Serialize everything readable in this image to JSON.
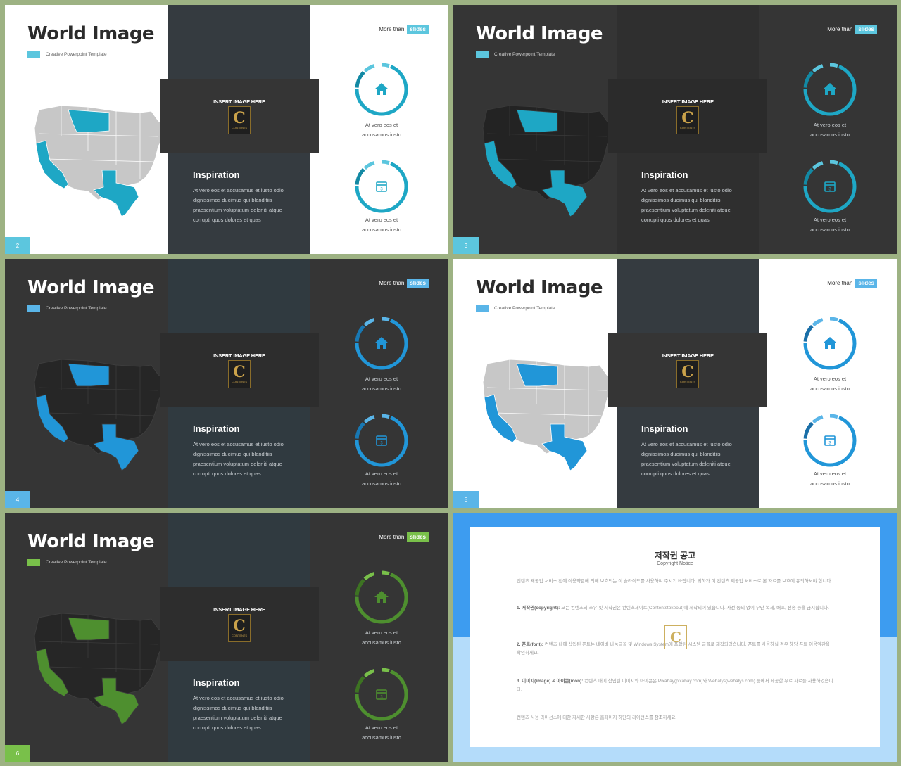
{
  "colors": {
    "frame": "#9db283",
    "teal": "#1ea7c5",
    "blue": "#3aa5dc",
    "green": "#6cb33e",
    "dark": "#353535",
    "dark_panel": "#303a40"
  },
  "slides": [
    {
      "title": "World Image",
      "subtitle": "Creative Powerpoint Template",
      "more_than": "More than",
      "badge": "slides",
      "insert_image": "INSERT IMAGE HERE",
      "inspiration_heading": "Inspiration",
      "inspiration_body": "At vero eos et accusamus  et iusto odio dignissimos ducimus qui blanditiis praesentium voluptatum deleniti atque corrupti quos dolores et quas",
      "ring1_caption_line1": "At vero eos et",
      "ring1_caption_line2": "accusamus  iusto",
      "ring2_caption_line1": "At vero eos et",
      "ring2_caption_line2": "accusamus  iusto",
      "ring1_icon": "home-icon",
      "ring2_icon": "calendar-icon",
      "page_number": "2"
    },
    {
      "title": "World Image",
      "subtitle": "Creative Powerpoint Template",
      "more_than": "More than",
      "badge": "slides",
      "insert_image": "INSERT IMAGE HERE",
      "inspiration_heading": "Inspiration",
      "inspiration_body": "At vero eos et accusamus  et iusto odio dignissimos ducimus qui blanditiis praesentium voluptatum deleniti atque corrupti quos dolores et quas",
      "ring1_caption_line1": "At vero eos et",
      "ring1_caption_line2": "accusamus  iusto",
      "ring2_caption_line1": "At vero eos et",
      "ring2_caption_line2": "accusamus  iusto",
      "ring1_icon": "home-icon",
      "ring2_icon": "calendar-icon",
      "page_number": "3"
    },
    {
      "title": "World Image",
      "subtitle": "Creative Powerpoint Template",
      "more_than": "More than",
      "badge": "slides",
      "insert_image": "INSERT IMAGE HERE",
      "inspiration_heading": "Inspiration",
      "inspiration_body": "At vero eos et accusamus  et iusto odio dignissimos ducimus qui blanditiis praesentium voluptatum deleniti atque corrupti quos dolores et quas",
      "ring1_caption_line1": "At vero eos et",
      "ring1_caption_line2": "accusamus  iusto",
      "ring2_caption_line1": "At vero eos et",
      "ring2_caption_line2": "accusamus  iusto",
      "ring1_icon": "home-icon",
      "ring2_icon": "calendar-icon",
      "page_number": "4"
    },
    {
      "title": "World Image",
      "subtitle": "Creative Powerpoint Template",
      "more_than": "More than",
      "badge": "slides",
      "insert_image": "INSERT IMAGE HERE",
      "inspiration_heading": "Inspiration",
      "inspiration_body": "At vero eos et accusamus  et iusto odio dignissimos ducimus qui blanditiis praesentium voluptatum deleniti atque corrupti quos dolores et quas",
      "ring1_caption_line1": "At vero eos et",
      "ring1_caption_line2": "accusamus  iusto",
      "ring2_caption_line1": "At vero eos et",
      "ring2_caption_line2": "accusamus  iusto",
      "ring1_icon": "home-icon",
      "ring2_icon": "calendar-icon",
      "page_number": "5"
    },
    {
      "title": "World Image",
      "subtitle": "Creative Powerpoint Template",
      "more_than": "More than",
      "badge": "slides",
      "insert_image": "INSERT IMAGE HERE",
      "inspiration_heading": "Inspiration",
      "inspiration_body": "At vero eos et accusamus  et iusto odio dignissimos ducimus qui blanditiis praesentium voluptatum deleniti atque corrupti quos dolores et quas",
      "ring1_caption_line1": "At vero eos et",
      "ring1_caption_line2": "accusamus  iusto",
      "ring2_caption_line1": "At vero eos et",
      "ring2_caption_line2": "accusamus  iusto",
      "ring1_icon": "home-icon",
      "ring2_icon": "calendar-icon",
      "page_number": "6"
    }
  ],
  "logo": {
    "letter": "C",
    "text": "CONTENTS"
  },
  "copyright": {
    "title": "저작권 공고",
    "subtitle": "Copyright Notice",
    "p1": "컨텐츠 제공업 서비스 전에 이용약관에 의해 보호되는 이 슬라이드를 사용하여 주시기 바랍니다. 귀하가 이 컨텐츠 제공업 서비스로 본 자료를 보호에 유의하셔야 합니다.",
    "p2_label": "1. 저작권(copyright):",
    "p2": " 모든 컨텐츠의 소유 및 저작권은 컨텐츠제이트(Contentstokeout)에 제작되어 있습니다. 사전 동의 없이 무단 복제, 배포, 전송 등을 금지합니다.",
    "p3_label": "2. 폰트(font):",
    "p3": " 컨텐츠 내에 삽입된 폰트는 네이버 나눔글꼴 및 Windows System에 포함된 시스템 글꼴로 제작되었습니다. 폰트를 사용하실 경우 해당 폰트 이용약관을 확인하세요.",
    "p4_label": "3. 이미지(image) & 아이콘(icon):",
    "p4": " 컨텐츠 내에 삽입된 이미지와 아이콘은 Pixabay(pixabay.com)와 Webalys(webalys.com) 등에서 제공한 무료 자료를 사용하였습니다.",
    "p5": "컨텐츠 사용 라이선스에 대한 자세한 사항은 홈페이지 하단의 라이선스를 참조하세요."
  }
}
